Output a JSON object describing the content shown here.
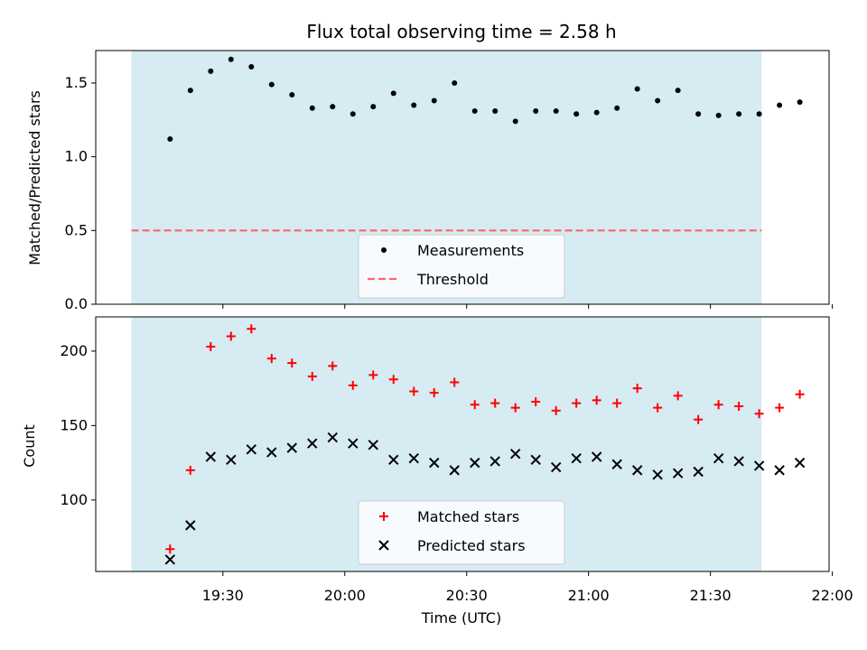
{
  "chart_data": {
    "title": "Flux total observing time = 2.58 h",
    "xlabel": "Time (UTC)",
    "x_tick_labels": [
      "19:30",
      "20:00",
      "20:30",
      "21:00",
      "21:30",
      "22:00"
    ],
    "x_tick_minutes": [
      1170,
      1200,
      1230,
      1260,
      1290,
      1320
    ],
    "xlim_minutes": [
      1138.7,
      1319.2
    ],
    "shaded_interval_minutes": [
      1147.5,
      1302.6
    ],
    "colors": {
      "shade": "#add8e6",
      "measurement": "#000000",
      "threshold": "#ff6666",
      "matched": "#ff0000",
      "predicted": "#000000"
    },
    "times": [
      "19:17",
      "19:22",
      "19:27",
      "19:32",
      "19:37",
      "19:42",
      "19:47",
      "19:52",
      "19:57",
      "20:02",
      "20:07",
      "20:12",
      "20:17",
      "20:22",
      "20:27",
      "20:32",
      "20:37",
      "20:42",
      "20:47",
      "20:52",
      "20:57",
      "21:02",
      "21:07",
      "21:12",
      "21:17",
      "21:22",
      "21:27",
      "21:32",
      "21:37",
      "21:42",
      "21:47",
      "21:52"
    ],
    "charts": [
      {
        "type": "scatter",
        "ylabel": "Matched/Predicted stars",
        "ylim": [
          0.0,
          1.72
        ],
        "yticks": [
          0.0,
          0.5,
          1.0,
          1.5
        ],
        "ytick_labels": [
          "0.0",
          "0.5",
          "1.0",
          "1.5"
        ],
        "legend_position": "bottom-center",
        "series": [
          {
            "name": "Measurements",
            "marker": "dot",
            "values": [
              1.12,
              1.45,
              1.58,
              1.66,
              1.61,
              1.49,
              1.42,
              1.33,
              1.34,
              1.29,
              1.34,
              1.43,
              1.35,
              1.38,
              1.5,
              1.31,
              1.31,
              1.24,
              1.31,
              1.31,
              1.29,
              1.3,
              1.33,
              1.46,
              1.38,
              1.45,
              1.29,
              1.28,
              1.29,
              1.29,
              1.35,
              1.37
            ]
          },
          {
            "name": "Threshold",
            "marker": "dashed-line",
            "value": 0.5
          }
        ]
      },
      {
        "type": "scatter",
        "ylabel": "Count",
        "ylim": [
          52,
          223
        ],
        "yticks": [
          100,
          150,
          200
        ],
        "ytick_labels": [
          "100",
          "150",
          "200"
        ],
        "legend_position": "bottom-center",
        "series": [
          {
            "name": "Matched stars",
            "marker": "plus",
            "values": [
              67,
              120,
              203,
              210,
              215,
              195,
              192,
              183,
              190,
              177,
              184,
              181,
              173,
              172,
              179,
              164,
              165,
              162,
              166,
              160,
              165,
              167,
              165,
              175,
              162,
              170,
              154,
              164,
              163,
              158,
              162,
              171
            ]
          },
          {
            "name": "Predicted stars",
            "marker": "x",
            "values": [
              60,
              83,
              129,
              127,
              134,
              132,
              135,
              138,
              142,
              138,
              137,
              127,
              128,
              125,
              120,
              125,
              126,
              131,
              127,
              122,
              128,
              129,
              124,
              120,
              117,
              118,
              119,
              128,
              126,
              123,
              120,
              125
            ]
          }
        ]
      }
    ]
  }
}
